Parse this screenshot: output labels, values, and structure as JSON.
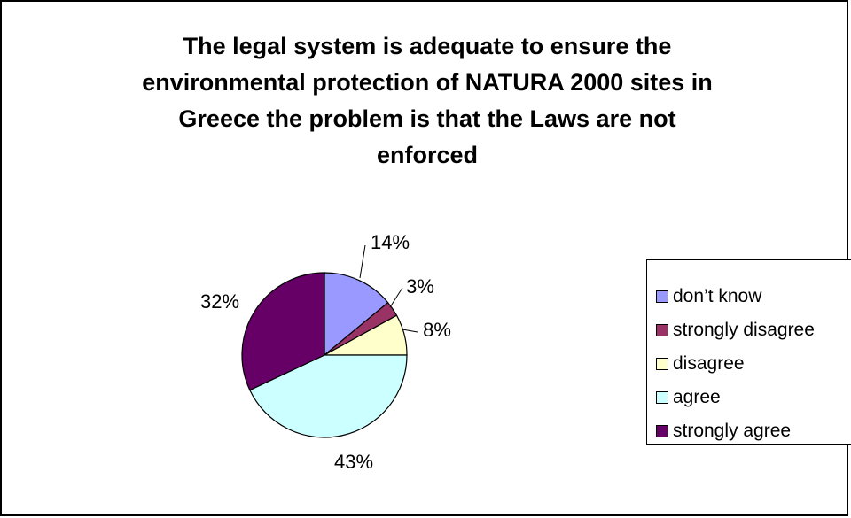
{
  "chart_data": {
    "type": "pie",
    "title": "The legal system is adequate to ensure the environmental protection of NATURA 2000 sites in Greece the problem is that the Laws are not enforced",
    "title_lines": [
      "The legal system is adequate to ensure the",
      "environmental protection of NATURA 2000 sites in",
      "Greece the problem is that the Laws are not",
      "enforced"
    ],
    "categories": [
      "don’t know",
      "strongly disagree",
      "disagree",
      "agree",
      "strongly agree"
    ],
    "values": [
      14,
      3,
      8,
      43,
      32
    ],
    "labels": [
      "14%",
      "3%",
      "8%",
      "43%",
      "32%"
    ],
    "colors": [
      "#9999ff",
      "#993366",
      "#ffffcc",
      "#ccffff",
      "#660066"
    ],
    "legend_position": "right"
  }
}
